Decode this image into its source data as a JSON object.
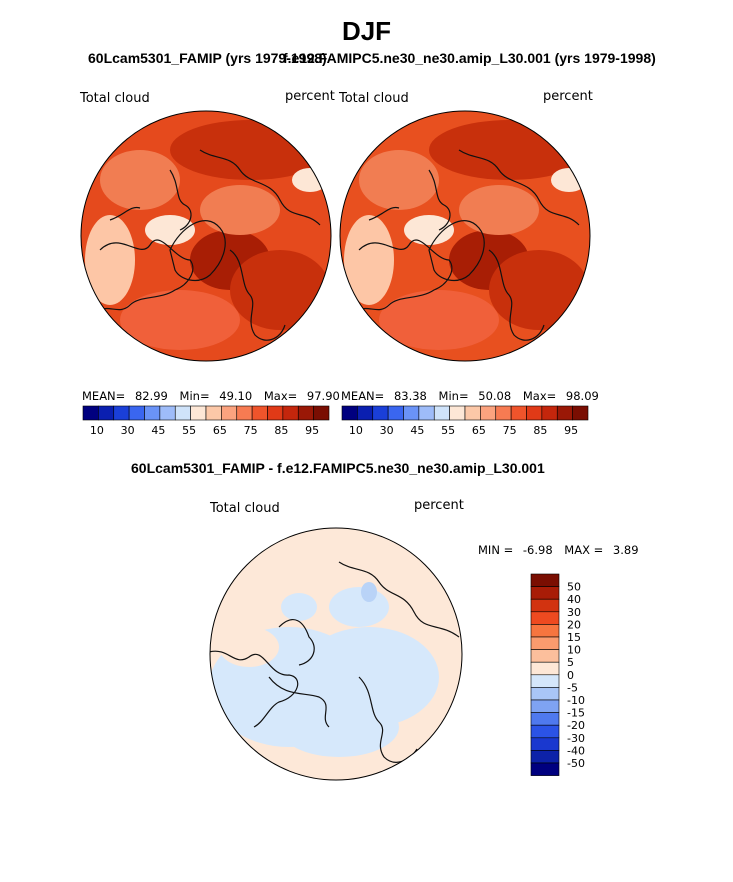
{
  "page": {
    "season_title": "DJF"
  },
  "left_panel": {
    "title": "60Lcam5301_FAMIP (yrs 1979-1998)",
    "field_label": "Total cloud",
    "units": "percent",
    "stats": {
      "mean_label": "MEAN=",
      "mean": "82.99",
      "min_label": "Min=",
      "min": "49.10",
      "max_label": "Max=",
      "max": "97.90"
    }
  },
  "right_panel": {
    "title": "f.e12.FAMIPC5.ne30_ne30.amip_L30.001 (yrs 1979-1998)",
    "field_label": "Total cloud",
    "units": "percent",
    "stats": {
      "mean_label": "MEAN=",
      "mean": "83.38",
      "min_label": "Min=",
      "min": "50.08",
      "max_label": "Max=",
      "max": "98.09"
    }
  },
  "top_colorbar": {
    "colors": [
      "#00007f",
      "#0a1fb0",
      "#1a3fd8",
      "#3a66f0",
      "#6a93f7",
      "#9ebcf9",
      "#cfe3fa",
      "#fde7d6",
      "#fcc8a8",
      "#fba37f",
      "#f77b52",
      "#ef542b",
      "#e03a17",
      "#c4260c",
      "#9a1806",
      "#7a0e02"
    ],
    "tick_labels": [
      "10",
      "30",
      "45",
      "55",
      "65",
      "75",
      "85",
      "95"
    ]
  },
  "diff_panel": {
    "title": "60Lcam5301_FAMIP - f.e12.FAMIPC5.ne30_ne30.amip_L30.001",
    "field_label": "Total cloud",
    "units": "percent",
    "min_label": "MIN =",
    "min": "-6.98",
    "max_label": "MAX =",
    "max": "3.89"
  },
  "diff_colorbar": {
    "colors": [
      "#7a0e02",
      "#a81c07",
      "#d23310",
      "#ee4a20",
      "#f7753f",
      "#fb9b6e",
      "#fcbf9c",
      "#fde7d6",
      "#d4e6fa",
      "#a9c6f6",
      "#7fa3f2",
      "#4f79ee",
      "#2b53e6",
      "#1a38cf",
      "#0d22a8",
      "#00007f"
    ],
    "tick_labels": [
      "50",
      "40",
      "30",
      "20",
      "15",
      "10",
      "5",
      "0",
      "-5",
      "-10",
      "-15",
      "-20",
      "-30",
      "-40",
      "-50"
    ]
  },
  "maps": {
    "left": {
      "background": "#e54a1d",
      "colors": [
        "#c8300c",
        "#f17d52",
        "#fdc6a6",
        "#fde7d6",
        "#a81e05",
        "#f0603a"
      ]
    },
    "right": {
      "background": "#e8501f",
      "colors": [
        "#c8300c",
        "#f17d52",
        "#fdc6a6",
        "#fde7d6",
        "#a81e05",
        "#f0603a"
      ]
    },
    "diff": {
      "background": "#fde8d8",
      "colors": [
        "#d6e8fb",
        "#b9d3f7",
        "#fde8d8"
      ]
    }
  }
}
